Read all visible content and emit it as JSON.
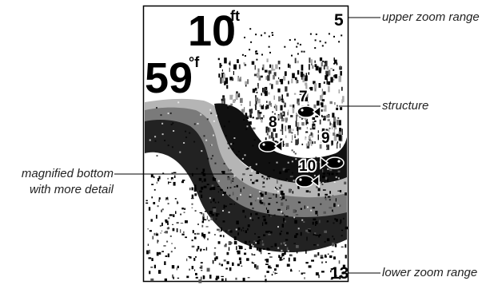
{
  "display": {
    "depth_value": "10",
    "depth_unit": "ft",
    "temp_value": "59",
    "temp_unit": "°f",
    "upper_range": "5",
    "lower_range": "13",
    "fish_depths": [
      "7",
      "8",
      "9",
      "10"
    ]
  },
  "callouts": {
    "upper_zoom_range": "upper zoom range",
    "structure": "structure",
    "magnified_bottom_line1": "magnified bottom",
    "magnified_bottom_line2": "with more detail",
    "lower_zoom_range": "lower zoom range"
  },
  "colors": {
    "ink": "#000000",
    "dark_gray": "#444444",
    "mid_gray": "#7a7a7a",
    "light_gray": "#b5b5b5",
    "paper": "#ffffff"
  }
}
